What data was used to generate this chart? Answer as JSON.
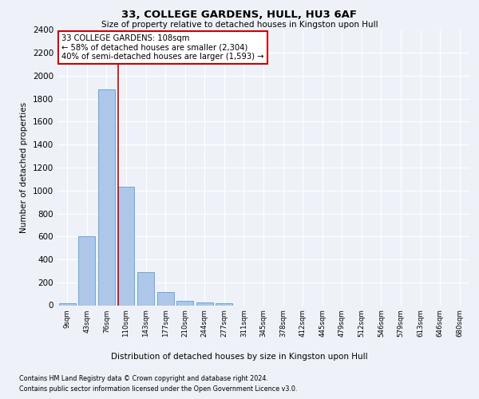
{
  "title": "33, COLLEGE GARDENS, HULL, HU3 6AF",
  "subtitle": "Size of property relative to detached houses in Kingston upon Hull",
  "xlabel_bottom": "Distribution of detached houses by size in Kingston upon Hull",
  "ylabel": "Number of detached properties",
  "footnote1": "Contains HM Land Registry data © Crown copyright and database right 2024.",
  "footnote2": "Contains public sector information licensed under the Open Government Licence v3.0.",
  "bar_labels": [
    "9sqm",
    "43sqm",
    "76sqm",
    "110sqm",
    "143sqm",
    "177sqm",
    "210sqm",
    "244sqm",
    "277sqm",
    "311sqm",
    "345sqm",
    "378sqm",
    "412sqm",
    "445sqm",
    "479sqm",
    "512sqm",
    "546sqm",
    "579sqm",
    "613sqm",
    "646sqm",
    "680sqm"
  ],
  "bar_values": [
    15,
    600,
    1880,
    1030,
    290,
    115,
    40,
    25,
    15,
    0,
    0,
    0,
    0,
    0,
    0,
    0,
    0,
    0,
    0,
    0,
    0
  ],
  "bar_color": "#aec6e8",
  "bar_edge_color": "#5a9fd4",
  "ylim": [
    0,
    2400
  ],
  "yticks": [
    0,
    200,
    400,
    600,
    800,
    1000,
    1200,
    1400,
    1600,
    1800,
    2000,
    2200,
    2400
  ],
  "property_line_col_index": 3,
  "property_line_color": "#cc0000",
  "annotation_text": "33 COLLEGE GARDENS: 108sqm\n← 58% of detached houses are smaller (2,304)\n40% of semi-detached houses are larger (1,593) →",
  "annotation_box_color": "#ffffff",
  "annotation_box_edge_color": "#cc0000",
  "background_color": "#eef2f8",
  "grid_color": "#ffffff"
}
